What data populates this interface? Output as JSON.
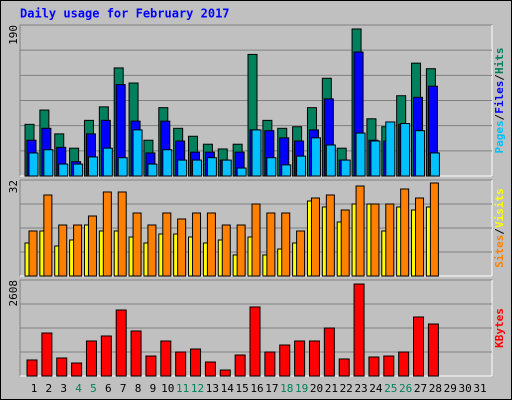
{
  "chart_data": [
    {
      "type": "bar",
      "title": "Daily usage for February 2017",
      "ylim": [
        0,
        190
      ],
      "yticks": [
        190
      ],
      "grid": true,
      "legend_separator": "/",
      "series": [
        {
          "name": "Hits",
          "color": "#00805c",
          "values": [
            65,
            83,
            53,
            35,
            70,
            87,
            136,
            117,
            45,
            86,
            60,
            50,
            40,
            34,
            40,
            153,
            70,
            60,
            62,
            86,
            123,
            35,
            185,
            72,
            62,
            101,
            142,
            135,
            null,
            null,
            null
          ]
        },
        {
          "name": "Files",
          "color": "#0000ff",
          "values": [
            45,
            60,
            36,
            18,
            53,
            70,
            115,
            69,
            29,
            69,
            44,
            30,
            30,
            20,
            30,
            58,
            57,
            48,
            44,
            58,
            97,
            20,
            156,
            45,
            44,
            65,
            99,
            113,
            null,
            null,
            null
          ]
        },
        {
          "name": "Pages",
          "color": "#00c0ff",
          "values": [
            29,
            33,
            15,
            15,
            24,
            35,
            23,
            58,
            15,
            33,
            20,
            20,
            23,
            20,
            10,
            58,
            23,
            14,
            25,
            48,
            39,
            20,
            54,
            44,
            68,
            66,
            57,
            29,
            null,
            null,
            null
          ]
        }
      ]
    },
    {
      "type": "bar",
      "ylim": [
        0,
        32
      ],
      "yticks": [
        32
      ],
      "grid": true,
      "legend_separator": "/",
      "series": [
        {
          "name": "Visits",
          "color": "#ffff00",
          "values": [
            11,
            15,
            10,
            12,
            17,
            15,
            15,
            13,
            11,
            14,
            14,
            13,
            11,
            12,
            7,
            13,
            7,
            9,
            11,
            25,
            23,
            18,
            24,
            24,
            15,
            23,
            22,
            23,
            null,
            null,
            null
          ]
        },
        {
          "name": "Sites",
          "color": "#ff8000",
          "values": [
            15,
            27,
            17,
            17,
            20,
            28,
            28,
            21,
            17,
            21,
            19,
            21,
            21,
            17,
            17,
            24,
            21,
            21,
            15,
            26,
            27,
            22,
            30,
            24,
            24,
            29,
            26,
            31,
            null,
            null,
            null
          ]
        }
      ]
    },
    {
      "type": "bar",
      "ylim": [
        0,
        2608
      ],
      "yticks": [
        2608
      ],
      "grid": true,
      "categories": [
        "1",
        "2",
        "3",
        "4",
        "5",
        "6",
        "7",
        "8",
        "9",
        "10",
        "11",
        "12",
        "13",
        "14",
        "15",
        "16",
        "17",
        "18",
        "19",
        "20",
        "21",
        "22",
        "23",
        "24",
        "25",
        "26",
        "27",
        "28",
        "29",
        "30",
        "31"
      ],
      "label_colors": [
        "#000000",
        "#000000",
        "#000000",
        "#00805c",
        "#00805c",
        "#000000",
        "#000000",
        "#000000",
        "#000000",
        "#000000",
        "#00805c",
        "#00805c",
        "#000000",
        "#000000",
        "#000000",
        "#000000",
        "#000000",
        "#00805c",
        "#00805c",
        "#000000",
        "#000000",
        "#000000",
        "#000000",
        "#000000",
        "#00805c",
        "#00805c",
        "#000000",
        "#000000",
        "#000000",
        "#000000",
        "#000000"
      ],
      "series": [
        {
          "name": "KBytes",
          "color": "#ff0000",
          "values": [
            435,
            1168,
            489,
            353,
            951,
            1087,
            1793,
            1223,
            543,
            951,
            652,
            733,
            380,
            163,
            570,
            1875,
            652,
            842,
            951,
            951,
            1304,
            462,
            2499,
            516,
            543,
            652,
            1603,
            1413,
            null,
            null,
            null
          ]
        }
      ]
    }
  ]
}
